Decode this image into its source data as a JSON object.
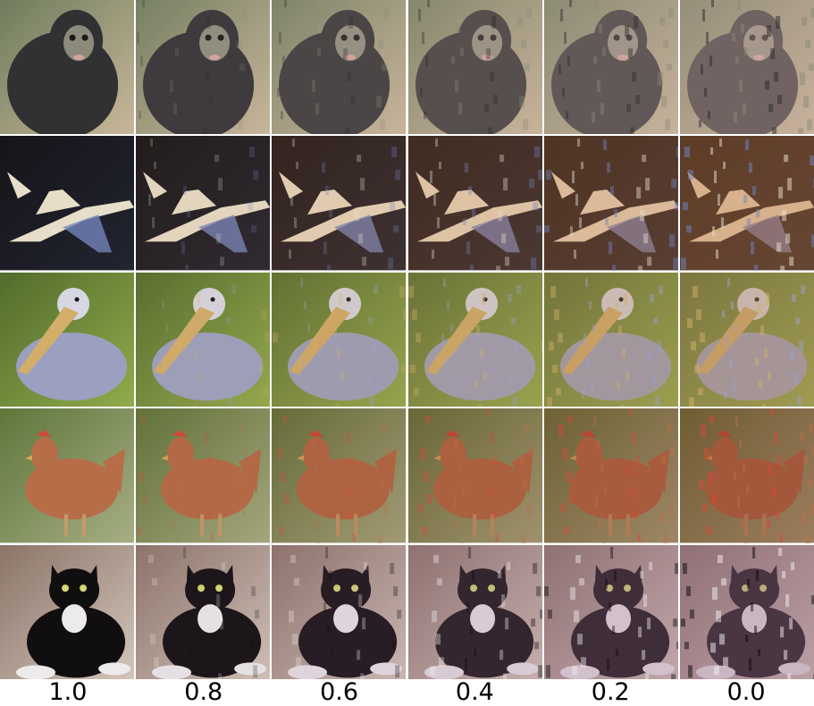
{
  "rows": [
    {
      "subject": "monkey",
      "bg": [
        "#6b7a5a",
        "#c9b89a"
      ],
      "fg": "#2a2a2e",
      "accent": "#8a8a7a",
      "tint": "#c7a9a0"
    },
    {
      "subject": "airplane",
      "bg": [
        "#0c1018",
        "#1a2030"
      ],
      "fg": "#e8e4d0",
      "accent": "#6f86c4",
      "tint": "#c4733a"
    },
    {
      "subject": "pelican",
      "bg": [
        "#4d6b2a",
        "#8fae4a"
      ],
      "fg": "#9aa2c6",
      "accent": "#d4b06a",
      "tint": "#b3865a"
    },
    {
      "subject": "chicken",
      "bg": [
        "#5c7a3c",
        "#a9b58a"
      ],
      "fg": "#b9704a",
      "accent": "#d84a3a",
      "tint": "#8a3a2a"
    },
    {
      "subject": "cat",
      "bg": [
        "#8a7566",
        "#d7cbbd"
      ],
      "fg": "#0a0a0a",
      "accent": "#f2f2f2",
      "tint": "#9a6a8a"
    }
  ],
  "columns": [
    "1.0",
    "0.8",
    "0.6",
    "0.4",
    "0.2",
    "0.0"
  ]
}
